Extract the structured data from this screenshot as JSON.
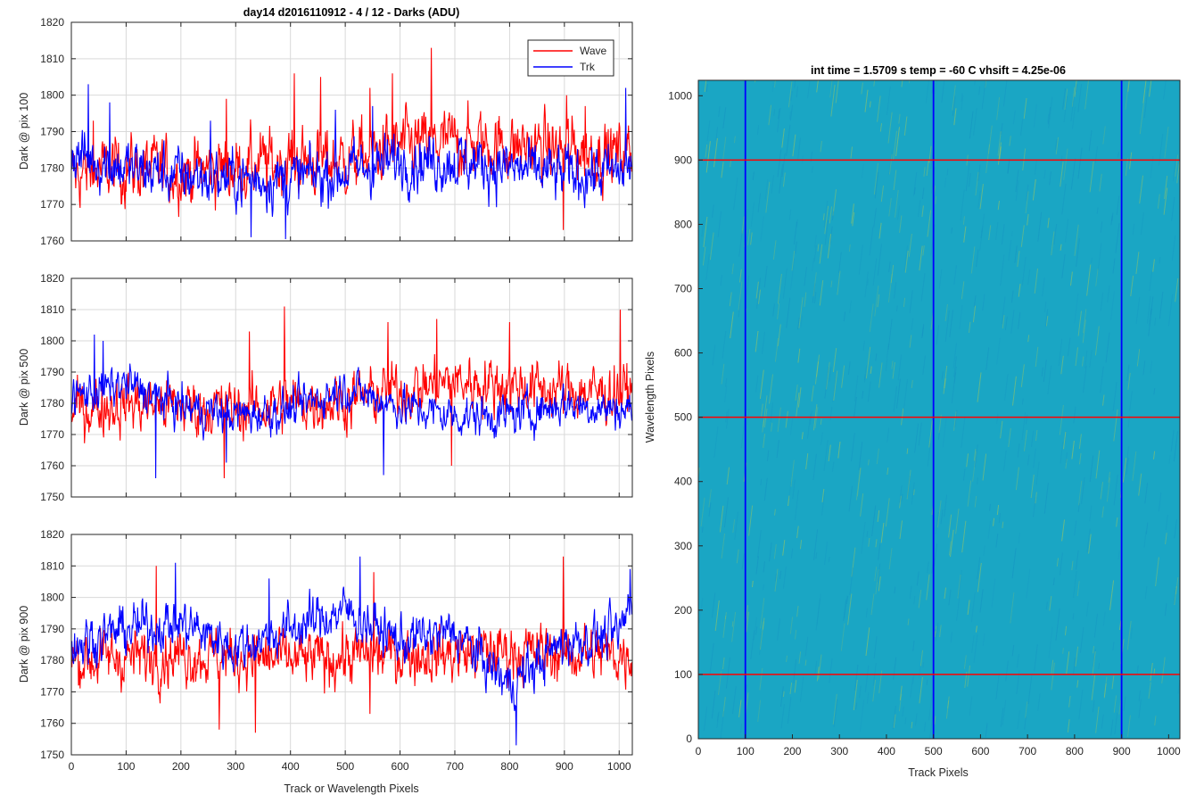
{
  "figure": {
    "left_title": "day14 d2016110912 - 4 / 12 - Darks (ADU)",
    "right_title": "int time = 1.5709 s    temp = -60 C    vhsift = 4.25e-06",
    "shared_xlabel": "Track or Wavelength Pixels"
  },
  "colors": {
    "wave": "#ff0000",
    "trk": "#0000ff",
    "grid": "#d9d9d9",
    "axis": "#262626",
    "heatmap_base": "#1aa6c4",
    "heatmap_high": "#bfcf45"
  },
  "chart_data": [
    {
      "type": "line",
      "ylabel": "Dark @ pix 100",
      "xlim": [
        0,
        1024
      ],
      "ylim": [
        1760,
        1820
      ],
      "xticks": [
        0,
        100,
        200,
        300,
        400,
        500,
        600,
        700,
        800,
        900,
        1000
      ],
      "yticks": [
        1760,
        1770,
        1780,
        1790,
        1800,
        1810,
        1820
      ],
      "grid": true,
      "legend": {
        "placement": "top-right",
        "entries": [
          "Wave",
          "Trk"
        ]
      },
      "series": [
        {
          "name": "Wave",
          "color": "#ff0000",
          "mean": 1782,
          "noise": 7,
          "x": [
            0,
            100,
            200,
            300,
            400,
            500,
            600,
            700,
            800,
            900,
            1000,
            1023
          ],
          "y": [
            1778,
            1780,
            1779,
            1780,
            1782,
            1782,
            1786,
            1787,
            1786,
            1785,
            1784,
            1785
          ],
          "peaks": [
            [
              40,
              1793
            ],
            [
              283,
              1799
            ],
            [
              407,
              1806
            ],
            [
              455,
              1805
            ],
            [
              545,
              1802
            ],
            [
              586,
              1806
            ],
            [
              657,
              1813
            ],
            [
              904,
              1800
            ],
            [
              938,
              1797
            ],
            [
              898,
              1763
            ]
          ]
        },
        {
          "name": "Trk",
          "color": "#0000ff",
          "mean": 1781,
          "noise": 6,
          "x": [
            0,
            100,
            200,
            300,
            400,
            500,
            600,
            700,
            800,
            900,
            1000,
            1023
          ],
          "y": [
            1784,
            1780,
            1778,
            1777,
            1777,
            1779,
            1782,
            1782,
            1780,
            1778,
            1779,
            1780
          ],
          "peaks": [
            [
              31,
              1803
            ],
            [
              70,
              1798
            ],
            [
              254,
              1793
            ],
            [
              482,
              1796
            ],
            [
              550,
              1797
            ],
            [
              328,
              1761
            ],
            [
              391,
              1760
            ],
            [
              1012,
              1802
            ]
          ]
        }
      ]
    },
    {
      "type": "line",
      "ylabel": "Dark @ pix 500",
      "xlim": [
        0,
        1024
      ],
      "ylim": [
        1750,
        1820
      ],
      "xticks": [
        0,
        100,
        200,
        300,
        400,
        500,
        600,
        700,
        800,
        900,
        1000
      ],
      "yticks": [
        1750,
        1760,
        1770,
        1780,
        1790,
        1800,
        1810,
        1820
      ],
      "grid": true,
      "series": [
        {
          "name": "Wave",
          "color": "#ff0000",
          "mean": 1781,
          "noise": 7,
          "x": [
            0,
            100,
            200,
            300,
            400,
            500,
            600,
            700,
            800,
            900,
            1000,
            1023
          ],
          "y": [
            1778,
            1780,
            1779,
            1778,
            1780,
            1781,
            1784,
            1787,
            1786,
            1784,
            1783,
            1784
          ],
          "peaks": [
            [
              389,
              1811
            ],
            [
              325,
              1803
            ],
            [
              578,
              1806
            ],
            [
              667,
              1807
            ],
            [
              800,
              1806
            ],
            [
              1002,
              1810
            ],
            [
              279,
              1756
            ],
            [
              694,
              1760
            ]
          ]
        },
        {
          "name": "Trk",
          "color": "#0000ff",
          "mean": 1780,
          "noise": 5,
          "x": [
            0,
            100,
            200,
            300,
            400,
            500,
            600,
            700,
            800,
            900,
            1000,
            1023
          ],
          "y": [
            1782,
            1786,
            1779,
            1776,
            1778,
            1785,
            1779,
            1776,
            1776,
            1780,
            1778,
            1778
          ],
          "peaks": [
            [
              42,
              1802
            ],
            [
              58,
              1800
            ],
            [
              154,
              1756
            ],
            [
              283,
              1761
            ],
            [
              570,
              1757
            ]
          ]
        }
      ]
    },
    {
      "type": "line",
      "ylabel": "Dark @ pix 900",
      "xlim": [
        0,
        1024
      ],
      "ylim": [
        1750,
        1820
      ],
      "xticks": [
        0,
        100,
        200,
        300,
        400,
        500,
        600,
        700,
        800,
        900,
        1000
      ],
      "yticks": [
        1750,
        1760,
        1770,
        1780,
        1790,
        1800,
        1810,
        1820
      ],
      "grid": true,
      "series": [
        {
          "name": "Wave",
          "color": "#ff0000",
          "mean": 1781,
          "noise": 7,
          "x": [
            0,
            100,
            200,
            300,
            400,
            500,
            600,
            700,
            800,
            900,
            1000,
            1023
          ],
          "y": [
            1780,
            1781,
            1782,
            1781,
            1780,
            1781,
            1782,
            1782,
            1783,
            1782,
            1782,
            1782
          ],
          "peaks": [
            [
              155,
              1810
            ],
            [
              552,
              1808
            ],
            [
              898,
              1813
            ],
            [
              270,
              1758
            ],
            [
              336,
              1757
            ],
            [
              545,
              1763
            ]
          ]
        },
        {
          "name": "Trk",
          "color": "#0000ff",
          "mean": 1786,
          "noise": 6,
          "x": [
            0,
            100,
            200,
            300,
            400,
            500,
            600,
            700,
            800,
            900,
            1000,
            1023
          ],
          "y": [
            1785,
            1790,
            1792,
            1784,
            1790,
            1796,
            1786,
            1789,
            1772,
            1786,
            1788,
            1800
          ],
          "peaks": [
            [
              190,
              1811
            ],
            [
              527,
              1813
            ],
            [
              361,
              1806
            ],
            [
              812,
              1753
            ],
            [
              1020,
              1809
            ]
          ]
        }
      ]
    },
    {
      "type": "heatmap",
      "xlabel": "Track Pixels",
      "ylabel": "Wavelength Pixels",
      "xlim": [
        0,
        1024
      ],
      "ylim": [
        0,
        1024
      ],
      "xticks": [
        0,
        100,
        200,
        300,
        400,
        500,
        600,
        700,
        800,
        900,
        1000
      ],
      "yticks": [
        0,
        100,
        200,
        300,
        400,
        500,
        600,
        700,
        800,
        900,
        1000
      ],
      "vertical_markers": {
        "color": "#0000ff",
        "x": [
          100,
          500,
          900
        ]
      },
      "horizontal_markers": {
        "color": "#ff0000",
        "y": [
          100,
          500,
          900
        ]
      }
    }
  ]
}
